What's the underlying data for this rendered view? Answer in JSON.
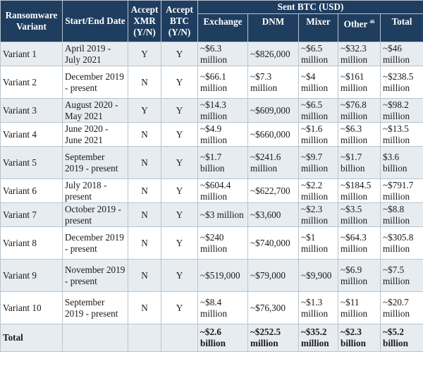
{
  "header": {
    "variant_label": "Ransomware Variant",
    "dates_label": "Start/End Date",
    "xmr_label": "Accept XMR (Y/N)",
    "btc_label": "Accept BTC (Y/N)",
    "sent_btc_label": "Sent BTC (USD)",
    "exchange_label": "Exchange",
    "dnm_label": "DNM",
    "mixer_label": "Mixer",
    "other_label": "Other",
    "other_footnote": "46",
    "total_label": "Total"
  },
  "rows": [
    {
      "variant": "Variant 1",
      "dates": "April 2019 - July 2021",
      "xmr": "Y",
      "btc": "Y",
      "exchange": "~$6.3 million",
      "dnm": "~$826,000",
      "mixer": "~$6.5 million",
      "other": "~$32.3 million",
      "total": "~$46 million"
    },
    {
      "variant": "Variant 2",
      "dates": "December 2019 - present",
      "xmr": "N",
      "btc": "Y",
      "exchange": "~$66.1 million",
      "dnm": "~$7.3 million",
      "mixer": "~$4 million",
      "other": "~$161 million",
      "total": "~$238.5 million"
    },
    {
      "variant": "Variant 3",
      "dates": "August 2020 - May 2021",
      "xmr": "Y",
      "btc": "Y",
      "exchange": "~$14.3 million",
      "dnm": "~$609,000",
      "mixer": "~$6.5 million",
      "other": "~$76.8 million",
      "total": "~$98.2 million"
    },
    {
      "variant": "Variant 4",
      "dates": "June 2020 - June 2021",
      "xmr": "N",
      "btc": "Y",
      "exchange": "~$4.9 million",
      "dnm": "~$660,000",
      "mixer": "~$1.6 million",
      "other": "~$6.3 million",
      "total": "~$13.5 million"
    },
    {
      "variant": "Variant 5",
      "dates": "September 2019 - present",
      "xmr": "N",
      "btc": "Y",
      "exchange": "~$1.7 billion",
      "dnm": "~$241.6 million",
      "mixer": "~$9.7 million",
      "other": "~$1.7 billion",
      "total": "$3.6 billion"
    },
    {
      "variant": "Variant 6",
      "dates": "July 2018 - present",
      "xmr": "N",
      "btc": "Y",
      "exchange": "~$604.4 million",
      "dnm": "~$622,700",
      "mixer": "~$2.2 million",
      "other": "~$184.5 million",
      "total": "~$791.7 million"
    },
    {
      "variant": "Variant 7",
      "dates": "October 2019 - present",
      "xmr": "N",
      "btc": "Y",
      "exchange": "~$3 million",
      "dnm": "~$3,600",
      "mixer": "~$2.3 million",
      "other": "~$3.5 million",
      "total": "~$8.8 million"
    },
    {
      "variant": "Variant 8",
      "dates": "December 2019 - present",
      "xmr": "N",
      "btc": "Y",
      "exchange": "~$240 million",
      "dnm": "~$740,000",
      "mixer": "~$1 million",
      "other": "~$64.3 million",
      "total": "~$305.8 million"
    },
    {
      "variant": "Variant 9",
      "dates": "November 2019 - present",
      "xmr": "N",
      "btc": "Y",
      "exchange": "~$519,000",
      "dnm": "~$79,000",
      "mixer": "~$9,900",
      "other": "~$6.9 million",
      "total": "~$7.5 million"
    },
    {
      "variant": "Variant 10",
      "dates": "September 2019 - present",
      "xmr": "N",
      "btc": "Y",
      "exchange": "~$8.4 million",
      "dnm": "~$76,300",
      "mixer": "~$1.3 million",
      "other": "~$11 million",
      "total": "~$20.7 million"
    }
  ],
  "totals": {
    "label": "Total",
    "exchange": "~$2.6 billion",
    "dnm": "~$252.5 million",
    "mixer": "~$35.2 million",
    "other": "~$2.3 billion",
    "total": "~$5.2 billion"
  }
}
